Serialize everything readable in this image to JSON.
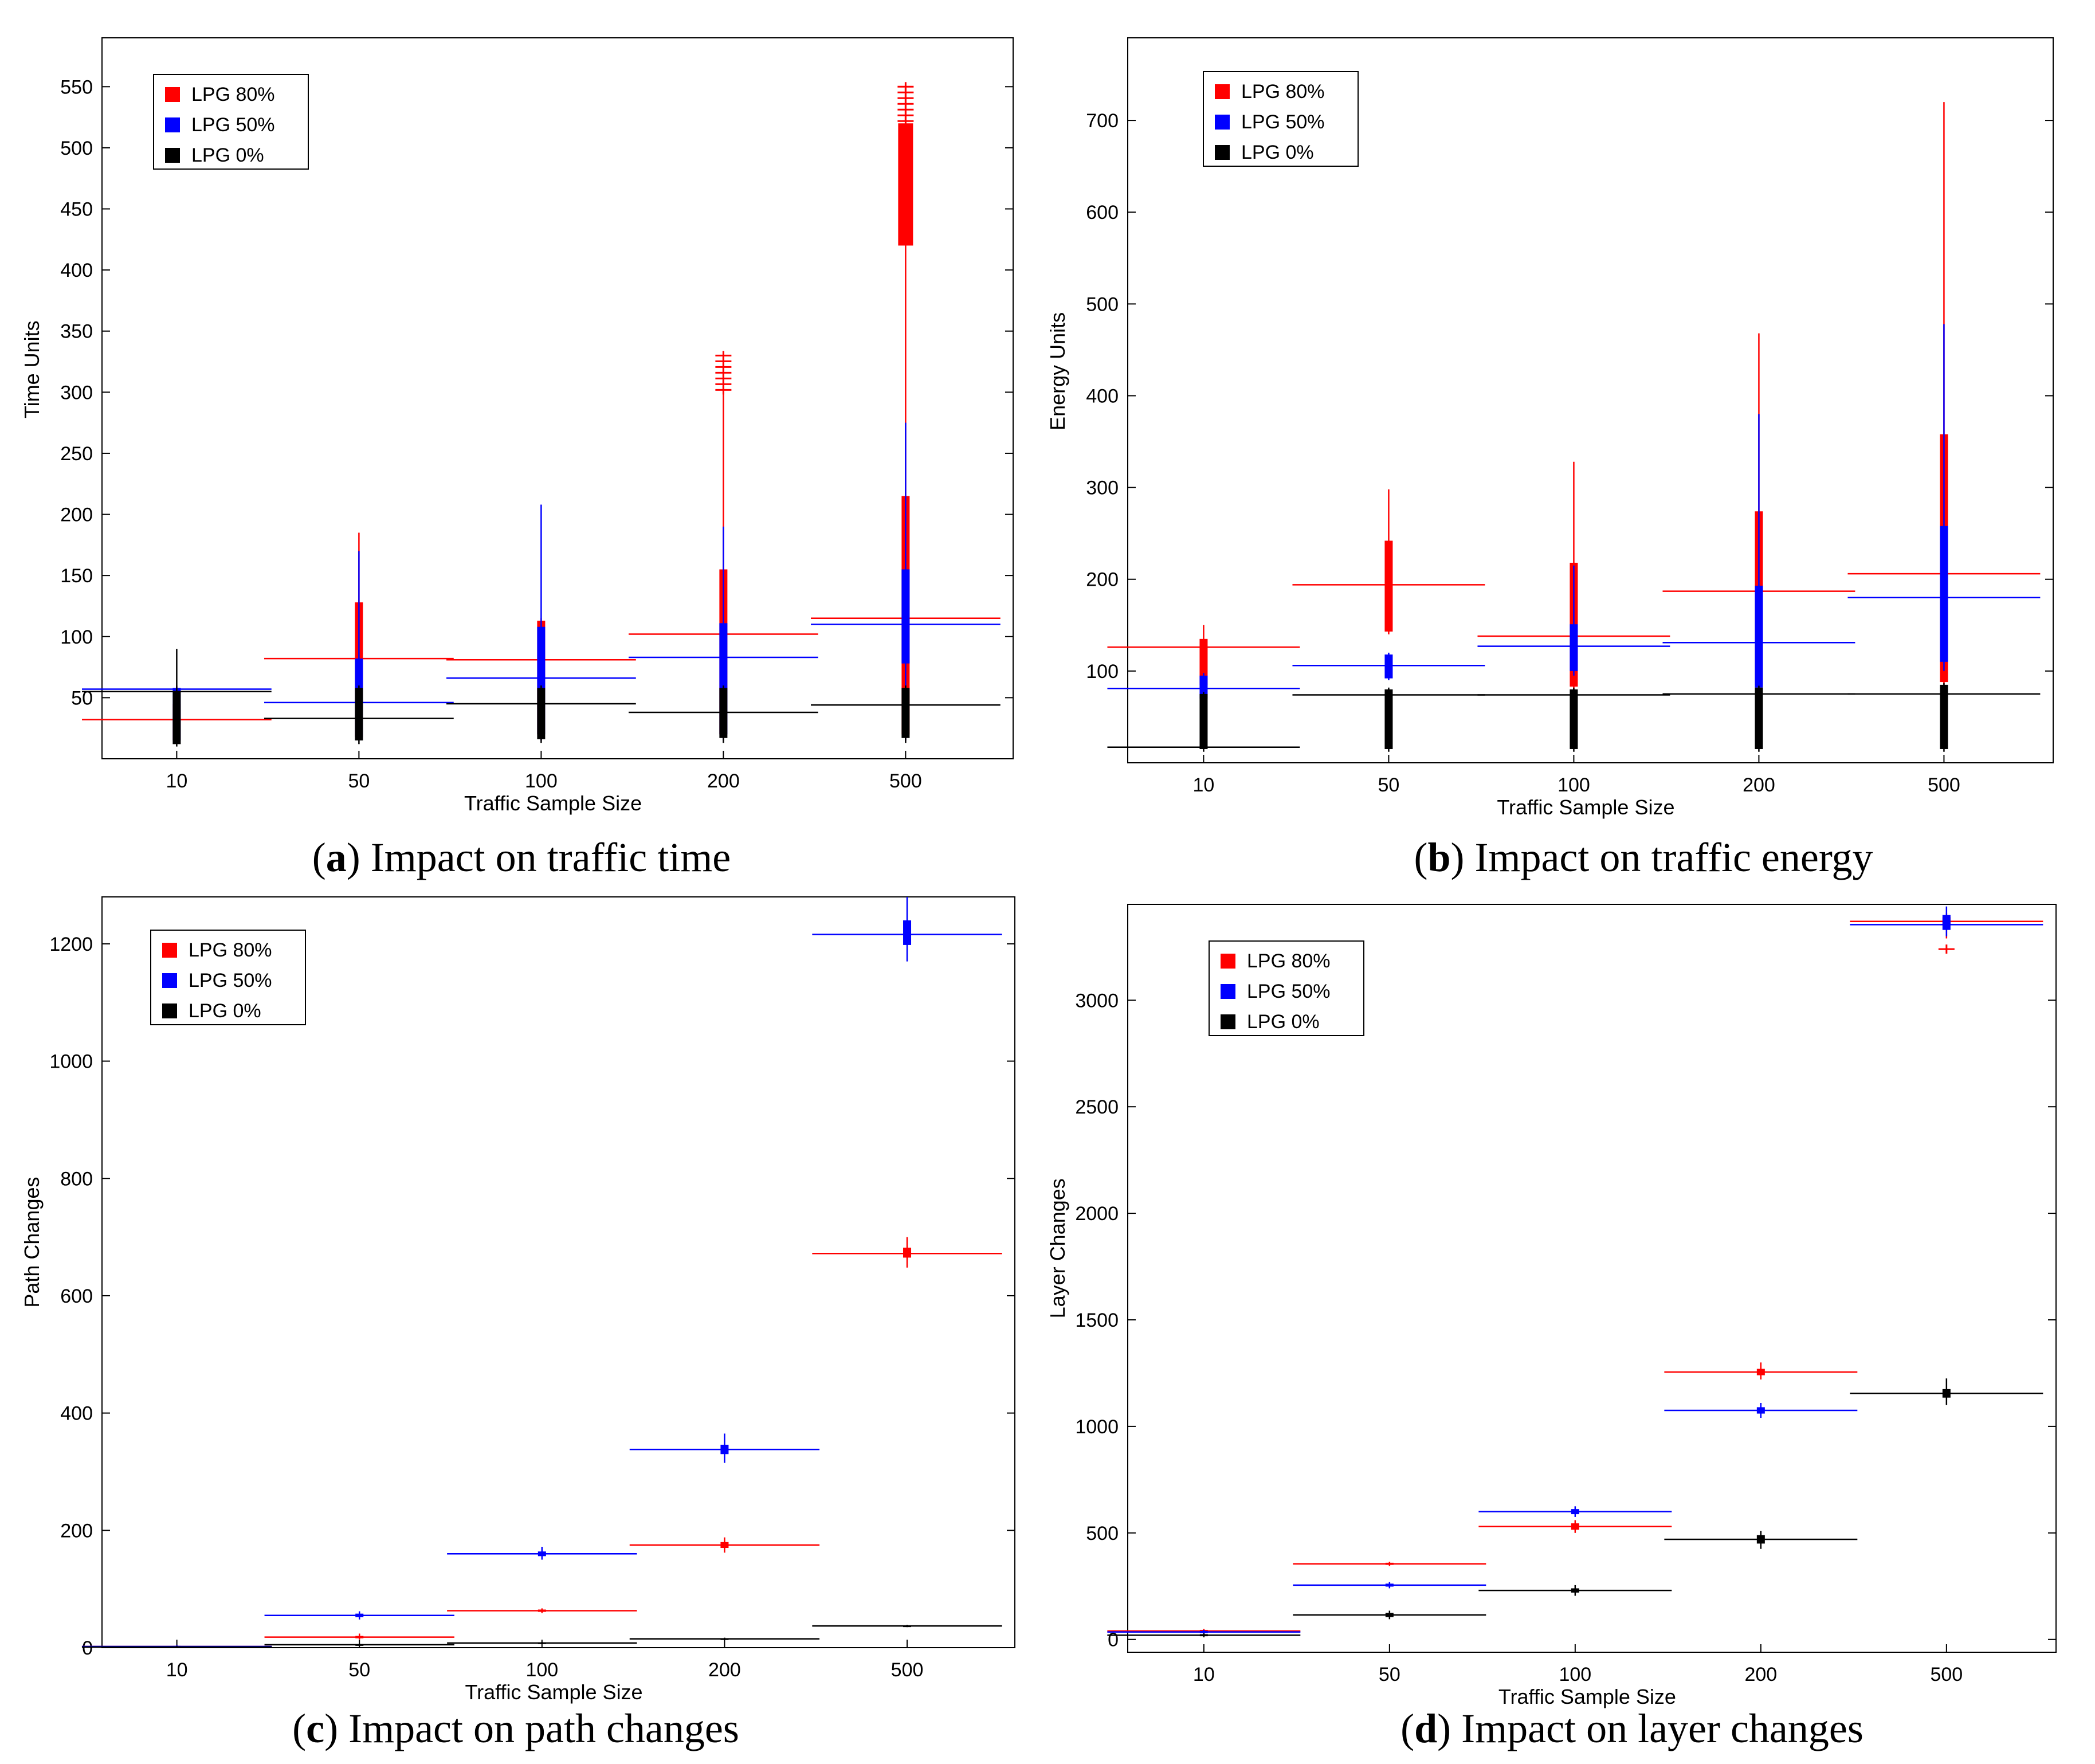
{
  "colors": {
    "lpg80": "#ff0000",
    "lpg50": "#0000ff",
    "lpg0": "#000000"
  },
  "chart_data": [
    {
      "type": "box",
      "panel": "a",
      "caption_letter": "a",
      "caption_text": "Impact on traffic time",
      "xlabel": "Traffic Sample Size",
      "ylabel": "Time Units",
      "categories": [
        "10",
        "50",
        "100",
        "200",
        "500"
      ],
      "ylim": [
        0,
        590
      ],
      "yticks": [
        50,
        100,
        150,
        200,
        250,
        300,
        350,
        400,
        450,
        500,
        550
      ],
      "legend_position": "top-left",
      "series": [
        {
          "name": "LPG 80%",
          "color": "#ff0000",
          "medians": [
            32,
            82,
            81,
            102,
            115
          ],
          "q1": [
            15,
            18,
            20,
            20,
            20
          ],
          "q3": [
            45,
            128,
            113,
            155,
            215
          ],
          "wlow": [
            12,
            15,
            15,
            15,
            15
          ],
          "whigh": [
            60,
            185,
            115,
            300,
            420
          ],
          "outlier_ranges": [
            [],
            [],
            [],
            [
              [
                300,
                330
              ]
            ],
            [
              [
                420,
                520
              ],
              [
                520,
                550
              ]
            ]
          ]
        },
        {
          "name": "LPG 50%",
          "color": "#0000ff",
          "medians": [
            57,
            46,
            66,
            83,
            110
          ],
          "q1": [
            15,
            18,
            20,
            20,
            78
          ],
          "q3": [
            58,
            82,
            108,
            111,
            155
          ],
          "wlow": [
            12,
            15,
            15,
            15,
            15
          ],
          "whigh": [
            59,
            170,
            208,
            190,
            275
          ],
          "outlier_ranges": [
            [],
            [],
            [],
            [],
            []
          ]
        },
        {
          "name": "LPG 0%",
          "color": "#000000",
          "medians": [
            55,
            33,
            45,
            38,
            44
          ],
          "q1": [
            12,
            15,
            16,
            17,
            17
          ],
          "q3": [
            55,
            58,
            58,
            58,
            58
          ],
          "wlow": [
            10,
            12,
            13,
            13,
            13
          ],
          "whigh": [
            90,
            60,
            60,
            60,
            60
          ],
          "outlier_ranges": [
            [],
            [],
            [],
            [],
            []
          ]
        }
      ]
    },
    {
      "type": "box",
      "panel": "b",
      "caption_letter": "b",
      "caption_text": "Impact on traffic energy",
      "xlabel": "Traffic Sample Size",
      "ylabel": "Energy Units",
      "categories": [
        "10",
        "50",
        "100",
        "200",
        "500"
      ],
      "ylim": [
        0,
        790
      ],
      "yticks": [
        100,
        200,
        300,
        400,
        500,
        600,
        700
      ],
      "legend_position": "top-left",
      "series": [
        {
          "name": "LPG 80%",
          "color": "#ff0000",
          "medians": [
            126,
            194,
            138,
            187,
            206
          ],
          "q1": [
            85,
            143,
            83,
            85,
            88
          ],
          "q3": [
            135,
            242,
            218,
            274,
            358
          ],
          "wlow": [
            80,
            140,
            80,
            80,
            80
          ],
          "whigh": [
            150,
            298,
            328,
            468,
            720
          ],
          "outlier_ranges": [
            [],
            [],
            [],
            [],
            []
          ]
        },
        {
          "name": "LPG 50%",
          "color": "#0000ff",
          "medians": [
            81,
            106,
            127,
            131,
            180
          ],
          "q1": [
            70,
            92,
            100,
            82,
            110
          ],
          "q3": [
            95,
            118,
            151,
            193,
            258
          ],
          "wlow": [
            65,
            90,
            95,
            80,
            100
          ],
          "whigh": [
            98,
            120,
            215,
            380,
            478
          ],
          "outlier_ranges": [
            [],
            [],
            [],
            [],
            []
          ]
        },
        {
          "name": "LPG 0%",
          "color": "#000000",
          "medians": [
            17,
            74,
            74,
            75,
            75
          ],
          "q1": [
            15,
            15,
            15,
            15,
            15
          ],
          "q3": [
            75,
            80,
            80,
            82,
            85
          ],
          "wlow": [
            12,
            12,
            12,
            12,
            12
          ],
          "whigh": [
            77,
            82,
            82,
            84,
            87
          ],
          "outlier_ranges": [
            [],
            [],
            [],
            [],
            []
          ]
        }
      ]
    },
    {
      "type": "box",
      "panel": "c",
      "caption_letter": "c",
      "caption_text": "Impact on path changes",
      "xlabel": "Traffic Sample Size",
      "ylabel": "Path Changes",
      "categories": [
        "10",
        "50",
        "100",
        "200",
        "500"
      ],
      "ylim": [
        0,
        1280
      ],
      "yticks": [
        0,
        200,
        400,
        600,
        800,
        1000,
        1200
      ],
      "legend_position": "top-left",
      "series": [
        {
          "name": "LPG 80%",
          "color": "#ff0000",
          "medians": [
            2,
            18,
            63,
            175,
            672
          ],
          "q1": [
            1,
            16,
            61,
            170,
            665
          ],
          "q3": [
            3,
            20,
            65,
            180,
            682
          ],
          "wlow": [
            0,
            14,
            59,
            162,
            648
          ],
          "whigh": [
            4,
            24,
            67,
            188,
            700
          ],
          "outlier_ranges": [
            [],
            [],
            [],
            [],
            []
          ]
        },
        {
          "name": "LPG 50%",
          "color": "#0000ff",
          "medians": [
            2,
            55,
            160,
            338,
            1216
          ],
          "q1": [
            1,
            52,
            156,
            330,
            1198
          ],
          "q3": [
            3,
            58,
            164,
            346,
            1240
          ],
          "wlow": [
            0,
            48,
            150,
            315,
            1170
          ],
          "whigh": [
            4,
            62,
            172,
            365,
            1280
          ],
          "outlier_ranges": [
            [],
            [],
            [],
            [],
            []
          ]
        },
        {
          "name": "LPG 0%",
          "color": "#000000",
          "medians": [
            1,
            5,
            8,
            15,
            37
          ],
          "q1": [
            0,
            4,
            7,
            14,
            36
          ],
          "q3": [
            2,
            6,
            9,
            16,
            38
          ],
          "wlow": [
            0,
            3,
            6,
            13,
            35
          ],
          "whigh": [
            3,
            7,
            10,
            17,
            39
          ],
          "outlier_ranges": [
            [],
            [],
            [],
            [],
            []
          ]
        }
      ]
    },
    {
      "type": "box",
      "panel": "d",
      "caption_letter": "d",
      "caption_text": "Impact on layer changes",
      "xlabel": "Traffic Sample Size",
      "ylabel": "Layer Changes",
      "categories": [
        "10",
        "50",
        "100",
        "200",
        "500"
      ],
      "ylim": [
        -60,
        3450
      ],
      "yticks": [
        0,
        500,
        1000,
        1500,
        2000,
        2500,
        3000
      ],
      "legend_position": "top-left",
      "series": [
        {
          "name": "LPG 80%",
          "color": "#ff0000",
          "medians": [
            40,
            355,
            530,
            1255,
            3370
          ],
          "q1": [
            35,
            350,
            515,
            1240,
            3355
          ],
          "q3": [
            45,
            360,
            545,
            1270,
            3390
          ],
          "wlow": [
            30,
            345,
            500,
            1220,
            3290
          ],
          "whigh": [
            50,
            365,
            560,
            1300,
            3410
          ],
          "outlier_ranges": [
            [],
            [],
            [],
            [],
            [
              [
                3240,
                3240
              ]
            ]
          ]
        },
        {
          "name": "LPG 50%",
          "color": "#0000ff",
          "medians": [
            35,
            255,
            600,
            1075,
            3355
          ],
          "q1": [
            30,
            248,
            588,
            1060,
            3330
          ],
          "q3": [
            40,
            262,
            612,
            1090,
            3400
          ],
          "wlow": [
            25,
            240,
            575,
            1040,
            3300
          ],
          "whigh": [
            45,
            270,
            625,
            1110,
            3440
          ],
          "outlier_ranges": [
            [],
            [],
            [],
            [],
            []
          ]
        },
        {
          "name": "LPG 0%",
          "color": "#000000",
          "medians": [
            20,
            115,
            230,
            470,
            1155
          ],
          "q1": [
            15,
            105,
            220,
            450,
            1135
          ],
          "q3": [
            25,
            125,
            240,
            490,
            1175
          ],
          "wlow": [
            10,
            95,
            205,
            425,
            1100
          ],
          "whigh": [
            30,
            135,
            255,
            510,
            1225
          ],
          "outlier_ranges": [
            [],
            [],
            [],
            [],
            []
          ]
        }
      ]
    }
  ]
}
